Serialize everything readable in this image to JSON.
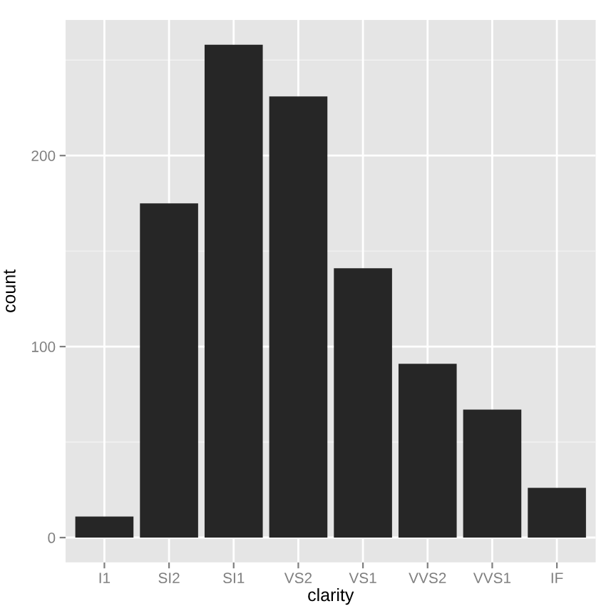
{
  "chart_data": {
    "type": "bar",
    "xlabel": "clarity",
    "ylabel": "count",
    "categories": [
      "I1",
      "SI2",
      "SI1",
      "VS2",
      "VS1",
      "VVS2",
      "VVS1",
      "IF"
    ],
    "values": [
      11,
      175,
      258,
      231,
      141,
      91,
      67,
      26
    ],
    "color": "#262626",
    "ylim": [
      -13,
      271
    ],
    "yticks": [
      0,
      100,
      200
    ],
    "grid": true
  }
}
